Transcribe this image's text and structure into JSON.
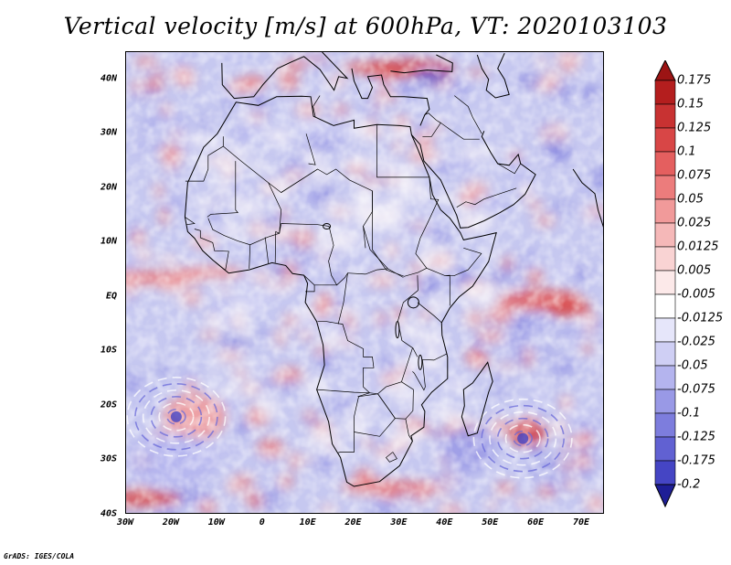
{
  "title": "Vertical velocity [m/s] at 600hPa, VT: 2020103103",
  "credit": "GrADS: IGES/COLA",
  "map": {
    "projection": "latlon",
    "lon_range": [
      -30,
      75
    ],
    "lat_range": [
      -40,
      45
    ],
    "variable": "vertical velocity",
    "units": "m/s",
    "level": "600hPa",
    "valid_time": "2020103103"
  },
  "axes": {
    "y_ticks": [
      {
        "label": "40N",
        "lat": 40
      },
      {
        "label": "30N",
        "lat": 30
      },
      {
        "label": "20N",
        "lat": 20
      },
      {
        "label": "10N",
        "lat": 10
      },
      {
        "label": "EQ",
        "lat": 0
      },
      {
        "label": "10S",
        "lat": -10
      },
      {
        "label": "20S",
        "lat": -20
      },
      {
        "label": "30S",
        "lat": -30
      },
      {
        "label": "40S",
        "lat": -40
      }
    ],
    "x_ticks": [
      {
        "label": "30W",
        "lon": -30
      },
      {
        "label": "20W",
        "lon": -20
      },
      {
        "label": "10W",
        "lon": -10
      },
      {
        "label": "0",
        "lon": 0
      },
      {
        "label": "10E",
        "lon": 10
      },
      {
        "label": "20E",
        "lon": 20
      },
      {
        "label": "30E",
        "lon": 30
      },
      {
        "label": "40E",
        "lon": 40
      },
      {
        "label": "50E",
        "lon": 50
      },
      {
        "label": "60E",
        "lon": 60
      },
      {
        "label": "70E",
        "lon": 70
      }
    ]
  },
  "colorbar": {
    "levels": [
      {
        "label": "0.175",
        "color": "#b41e1e"
      },
      {
        "label": "0.15",
        "color": "#c83232"
      },
      {
        "label": "0.125",
        "color": "#d84646"
      },
      {
        "label": "0.1",
        "color": "#e45f5f"
      },
      {
        "label": "0.075",
        "color": "#ec7c7c"
      },
      {
        "label": "0.05",
        "color": "#f19a9a"
      },
      {
        "label": "0.025",
        "color": "#f5b8b8"
      },
      {
        "label": "0.0125",
        "color": "#f9d3d3"
      },
      {
        "label": "0.005",
        "color": "#fce9e9"
      },
      {
        "label": "-0.005",
        "color": "#ffffff"
      },
      {
        "label": "-0.0125",
        "color": "#e6e6fa"
      },
      {
        "label": "-0.025",
        "color": "#cfcff4"
      },
      {
        "label": "-0.05",
        "color": "#b4b4ee"
      },
      {
        "label": "-0.075",
        "color": "#9999e6"
      },
      {
        "label": "-0.1",
        "color": "#7d7ddd"
      },
      {
        "label": "-0.125",
        "color": "#6161d2"
      },
      {
        "label": "-0.175",
        "color": "#4545c4"
      },
      {
        "label": "-0.2",
        "color": "#2d2db4"
      }
    ],
    "top_color": "#9c1414",
    "bottom_color": "#1e1e96"
  },
  "features": [
    {
      "name": "tropical-cyclone-swirl",
      "lon": -19,
      "lat": -22
    },
    {
      "name": "tropical-cyclone-swirl",
      "lon": 57,
      "lat": -26
    },
    {
      "name": "itcz-ascent-band",
      "lon": -20,
      "lat": 4
    },
    {
      "name": "indian-ocean-ascent",
      "lon": 62,
      "lat": -1
    }
  ]
}
